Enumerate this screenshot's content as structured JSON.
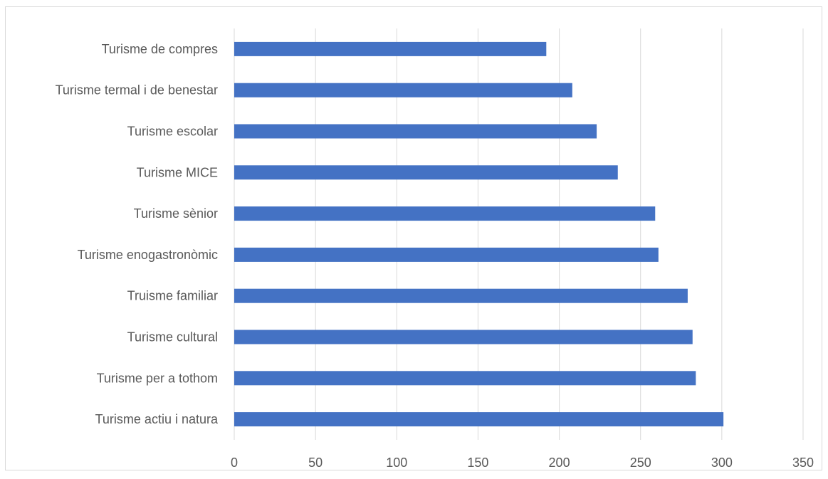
{
  "chart_data": {
    "type": "bar",
    "orientation": "horizontal",
    "categories": [
      "Turisme actiu i natura",
      "Turisme per a tothom",
      "Turisme cultural",
      "Truisme familiar",
      "Turisme enogastronòmic",
      "Turisme sènior",
      "Turisme MICE",
      "Turisme escolar",
      "Turisme termal i de benestar",
      "Turisme de compres"
    ],
    "values": [
      301,
      284,
      282,
      279,
      261,
      259,
      236,
      223,
      208,
      192
    ],
    "xlim": [
      0,
      350
    ],
    "xticks": [
      "0",
      "50",
      "100",
      "150",
      "200",
      "250",
      "300",
      "350"
    ],
    "grid": true,
    "title": "",
    "xlabel": "",
    "ylabel": "",
    "colors": {
      "bar": "#4472c4",
      "grid": "#d9d9d9",
      "text": "#595959"
    }
  }
}
